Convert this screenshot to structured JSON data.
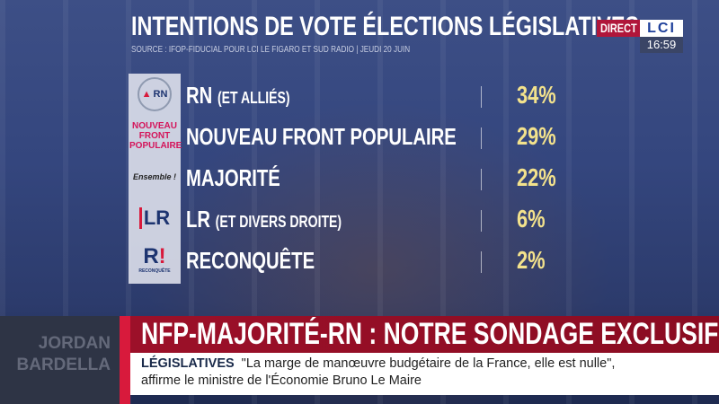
{
  "header": {
    "title": "INTENTIONS DE VOTE ÉLECTIONS LÉGISLATIVES",
    "source": "SOURCE : IFOP-FIDUCIAL POUR LCI LE FIGARO ET SUD RADIO | JEUDI 20 JUIN"
  },
  "channel": {
    "live": "DIRECT",
    "logo": "LCI",
    "time": "16:59"
  },
  "results": [
    {
      "logo": "RN",
      "name": "RN",
      "qualifier": "(ET ALLIÉS)",
      "percent": "34%",
      "value": 34
    },
    {
      "logo": "NOUVEAU FRONT POPULAIRE",
      "name": "NOUVEAU FRONT POPULAIRE",
      "qualifier": "",
      "percent": "29%",
      "value": 29
    },
    {
      "logo": "Ensemble !",
      "name": "MAJORITÉ",
      "qualifier": "",
      "percent": "22%",
      "value": 22
    },
    {
      "logo": "LR",
      "name": "LR",
      "qualifier": "(ET DIVERS DROITE)",
      "percent": "6%",
      "value": 6
    },
    {
      "logo": "RECONQUÊTE",
      "name": "RECONQUÊTE",
      "qualifier": "",
      "percent": "2%",
      "value": 2
    }
  ],
  "poster": {
    "line1": "JORDAN",
    "line2": "BARDELLA"
  },
  "banner": {
    "headline": "NFP-MAJORITÉ-RN : NOTRE SONDAGE EXCLUSIF"
  },
  "ticker": {
    "tag": "LÉGISLATIVES",
    "line1": "\"La marge de manœuvre budgétaire de la France, elle est nulle\",",
    "line2": "affirme le ministre de l'Économie Bruno Le Maire"
  },
  "colors": {
    "percent": "#f3e28c",
    "banner": "#9c1029",
    "accent": "#d81a3c"
  }
}
